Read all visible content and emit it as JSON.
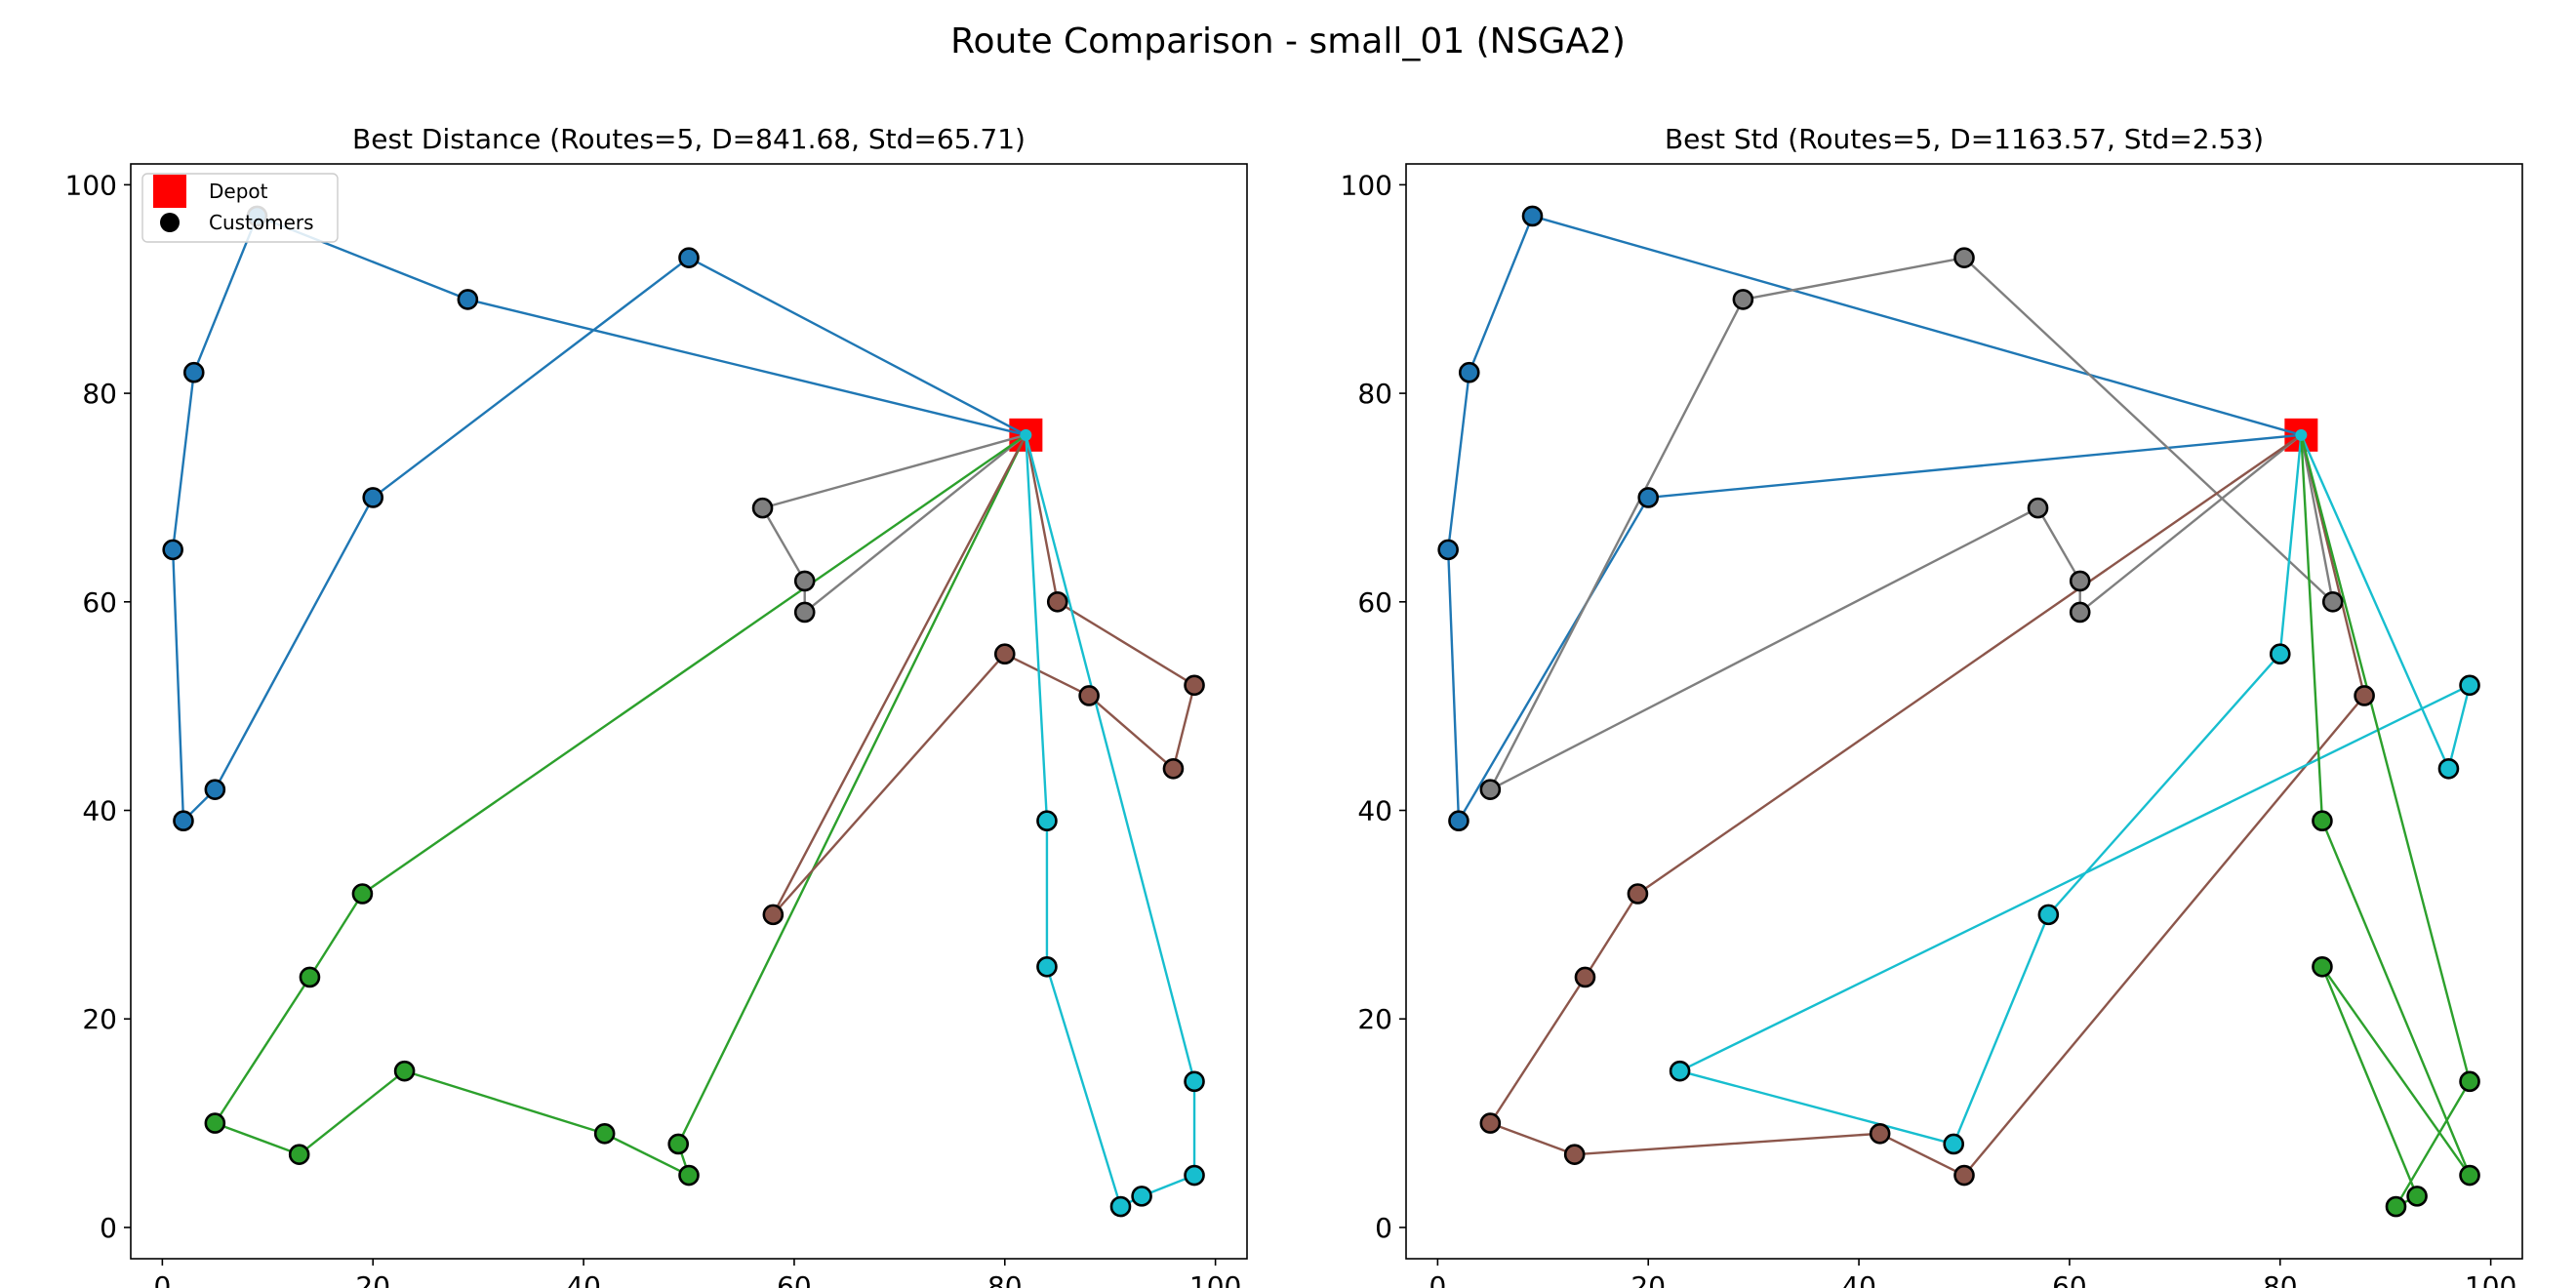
{
  "suptitle": "Route Comparison - small_01 (NSGA2)",
  "chart_data": [
    {
      "type": "scatter",
      "title": "Best Distance (Routes=5, D=841.68, Std=65.71)",
      "xlabel": "",
      "ylabel": "",
      "xlim": [
        -3,
        103
      ],
      "ylim": [
        -3,
        102
      ],
      "xticks": [
        0,
        20,
        40,
        60,
        80,
        100
      ],
      "yticks": [
        0,
        20,
        40,
        60,
        80,
        100
      ],
      "legend": {
        "placement": "top-left",
        "entries": [
          {
            "label": "Depot",
            "marker": "square",
            "color": "#ff0000"
          },
          {
            "label": "Customers",
            "marker": "circle",
            "color": "#000000"
          }
        ]
      },
      "depot": {
        "x": 82,
        "y": 76,
        "color": "#ff0000"
      },
      "routes": [
        {
          "color": "#1f77b4",
          "points": [
            [
              29,
              89
            ],
            [
              9,
              97
            ],
            [
              3,
              82
            ],
            [
              1,
              65
            ],
            [
              2,
              39
            ],
            [
              5,
              42
            ],
            [
              20,
              70
            ],
            [
              50,
              93
            ]
          ]
        },
        {
          "color": "#7f7f7f",
          "points": [
            [
              61,
              59
            ],
            [
              61,
              62
            ],
            [
              57,
              69
            ]
          ]
        },
        {
          "color": "#2ca02c",
          "points": [
            [
              19,
              32
            ],
            [
              14,
              24
            ],
            [
              5,
              10
            ],
            [
              13,
              7
            ],
            [
              23,
              15
            ],
            [
              42,
              9
            ],
            [
              50,
              5
            ],
            [
              49,
              8
            ]
          ]
        },
        {
          "color": "#8c564b",
          "points": [
            [
              58,
              30
            ],
            [
              80,
              55
            ],
            [
              88,
              51
            ],
            [
              96,
              44
            ],
            [
              98,
              52
            ],
            [
              85,
              60
            ]
          ]
        },
        {
          "color": "#17becf",
          "points": [
            [
              84,
              39
            ],
            [
              84,
              25
            ],
            [
              91,
              2
            ],
            [
              93,
              3
            ],
            [
              98,
              5
            ],
            [
              98,
              14
            ]
          ]
        }
      ]
    },
    {
      "type": "scatter",
      "title": "Best Std (Routes=5, D=1163.57, Std=2.53)",
      "xlabel": "",
      "ylabel": "",
      "xlim": [
        -3,
        103
      ],
      "ylim": [
        -3,
        102
      ],
      "xticks": [
        0,
        20,
        40,
        60,
        80,
        100
      ],
      "yticks": [
        0,
        20,
        40,
        60,
        80,
        100
      ],
      "depot": {
        "x": 82,
        "y": 76,
        "color": "#ff0000"
      },
      "routes": [
        {
          "color": "#1f77b4",
          "points": [
            [
              9,
              97
            ],
            [
              3,
              82
            ],
            [
              1,
              65
            ],
            [
              2,
              39
            ],
            [
              20,
              70
            ]
          ]
        },
        {
          "color": "#7f7f7f",
          "points": [
            [
              85,
              60
            ],
            [
              50,
              93
            ],
            [
              29,
              89
            ],
            [
              5,
              42
            ],
            [
              57,
              69
            ],
            [
              61,
              62
            ],
            [
              61,
              59
            ]
          ]
        },
        {
          "color": "#8c564b",
          "points": [
            [
              19,
              32
            ],
            [
              14,
              24
            ],
            [
              5,
              10
            ],
            [
              13,
              7
            ],
            [
              42,
              9
            ],
            [
              50,
              5
            ],
            [
              88,
              51
            ]
          ]
        },
        {
          "color": "#17becf",
          "points": [
            [
              80,
              55
            ],
            [
              58,
              30
            ],
            [
              49,
              8
            ],
            [
              23,
              15
            ],
            [
              98,
              52
            ],
            [
              96,
              44
            ]
          ]
        },
        {
          "color": "#2ca02c",
          "points": [
            [
              84,
              39
            ],
            [
              98,
              5
            ],
            [
              84,
              25
            ],
            [
              93,
              3
            ],
            [
              91,
              2
            ],
            [
              98,
              14
            ]
          ]
        }
      ]
    }
  ]
}
